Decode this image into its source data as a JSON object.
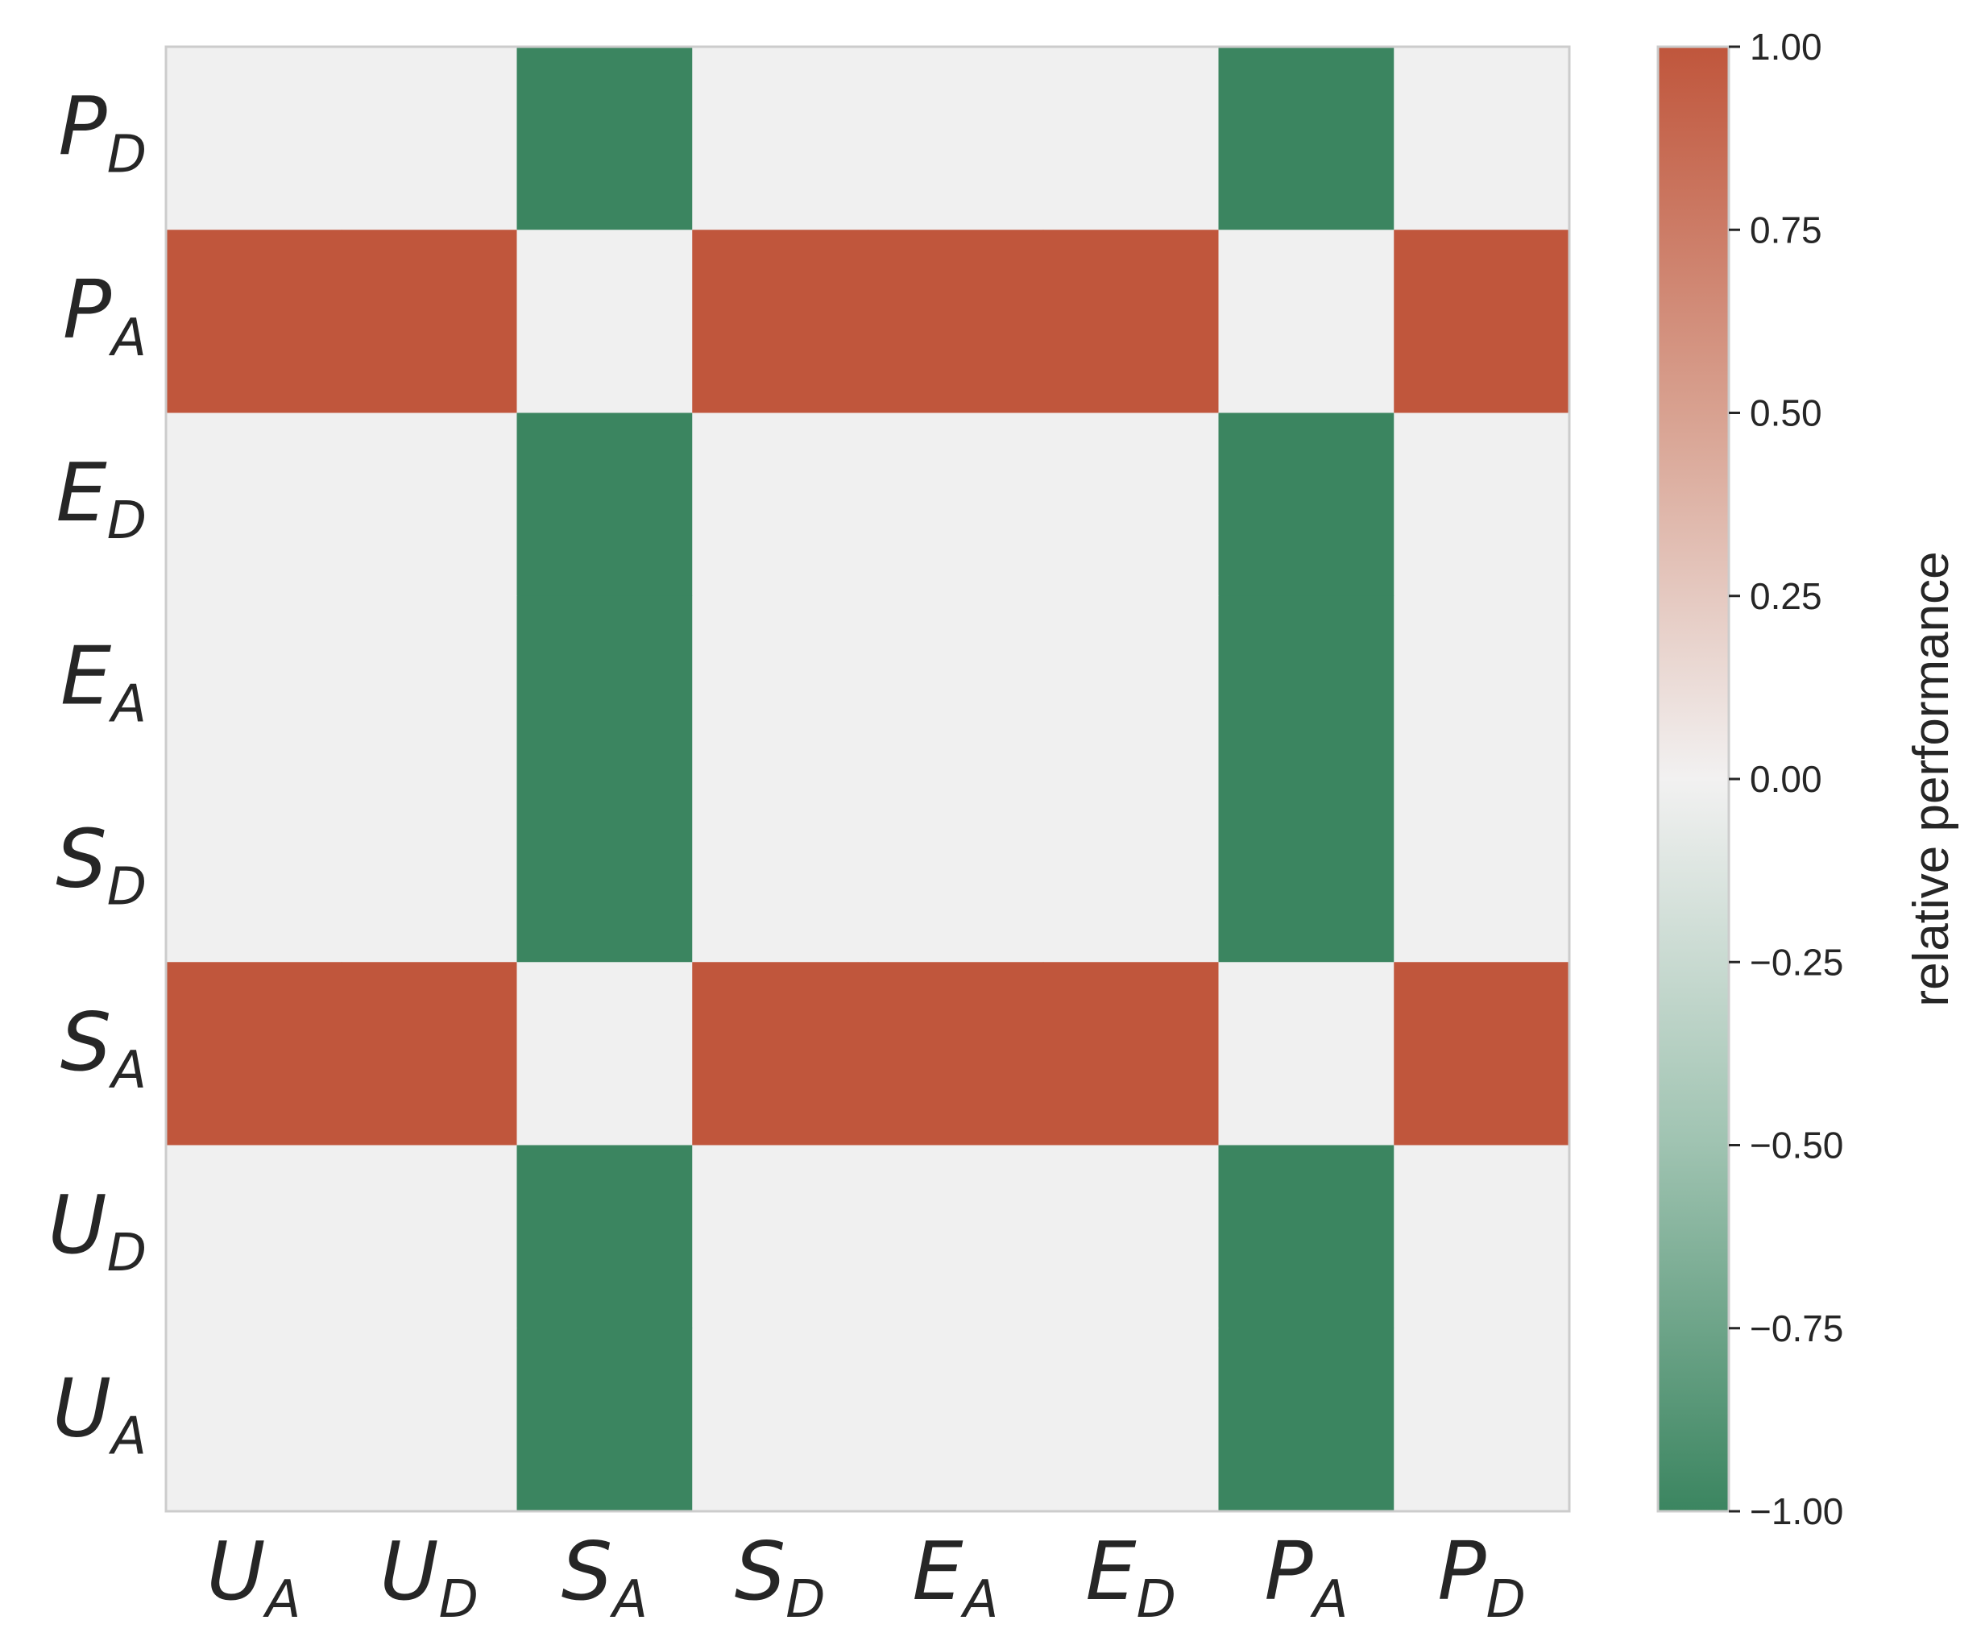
{
  "chart_data": {
    "type": "heatmap",
    "title": "",
    "x_labels": [
      {
        "main": "U",
        "sub": "A"
      },
      {
        "main": "U",
        "sub": "D"
      },
      {
        "main": "S",
        "sub": "A"
      },
      {
        "main": "S",
        "sub": "D"
      },
      {
        "main": "E",
        "sub": "A"
      },
      {
        "main": "E",
        "sub": "D"
      },
      {
        "main": "P",
        "sub": "A"
      },
      {
        "main": "P",
        "sub": "D"
      }
    ],
    "y_labels_top_to_bottom": [
      {
        "main": "P",
        "sub": "D"
      },
      {
        "main": "P",
        "sub": "A"
      },
      {
        "main": "E",
        "sub": "D"
      },
      {
        "main": "E",
        "sub": "A"
      },
      {
        "main": "S",
        "sub": "D"
      },
      {
        "main": "S",
        "sub": "A"
      },
      {
        "main": "U",
        "sub": "D"
      },
      {
        "main": "U",
        "sub": "A"
      }
    ],
    "values_top_to_bottom": [
      [
        0,
        0,
        -1,
        0,
        0,
        0,
        -1,
        0
      ],
      [
        1,
        1,
        0,
        1,
        1,
        1,
        0,
        1
      ],
      [
        0,
        0,
        -1,
        0,
        0,
        0,
        -1,
        0
      ],
      [
        0,
        0,
        -1,
        0,
        0,
        0,
        -1,
        0
      ],
      [
        0,
        0,
        -1,
        0,
        0,
        0,
        -1,
        0
      ],
      [
        1,
        1,
        0,
        1,
        1,
        1,
        0,
        1
      ],
      [
        0,
        0,
        -1,
        0,
        0,
        0,
        -1,
        0
      ],
      [
        0,
        0,
        -1,
        0,
        0,
        0,
        -1,
        0
      ]
    ],
    "colorbar": {
      "label": "relative performance",
      "range": [
        -1.0,
        1.0
      ],
      "ticks": [
        "1.00",
        "0.75",
        "0.50",
        "0.25",
        "0.00",
        "−0.25",
        "−0.50",
        "−0.75",
        "−1.00"
      ],
      "colors": {
        "negative": "#3b8560",
        "zero": "#f0f0f0",
        "positive": "#c0563c"
      }
    }
  }
}
